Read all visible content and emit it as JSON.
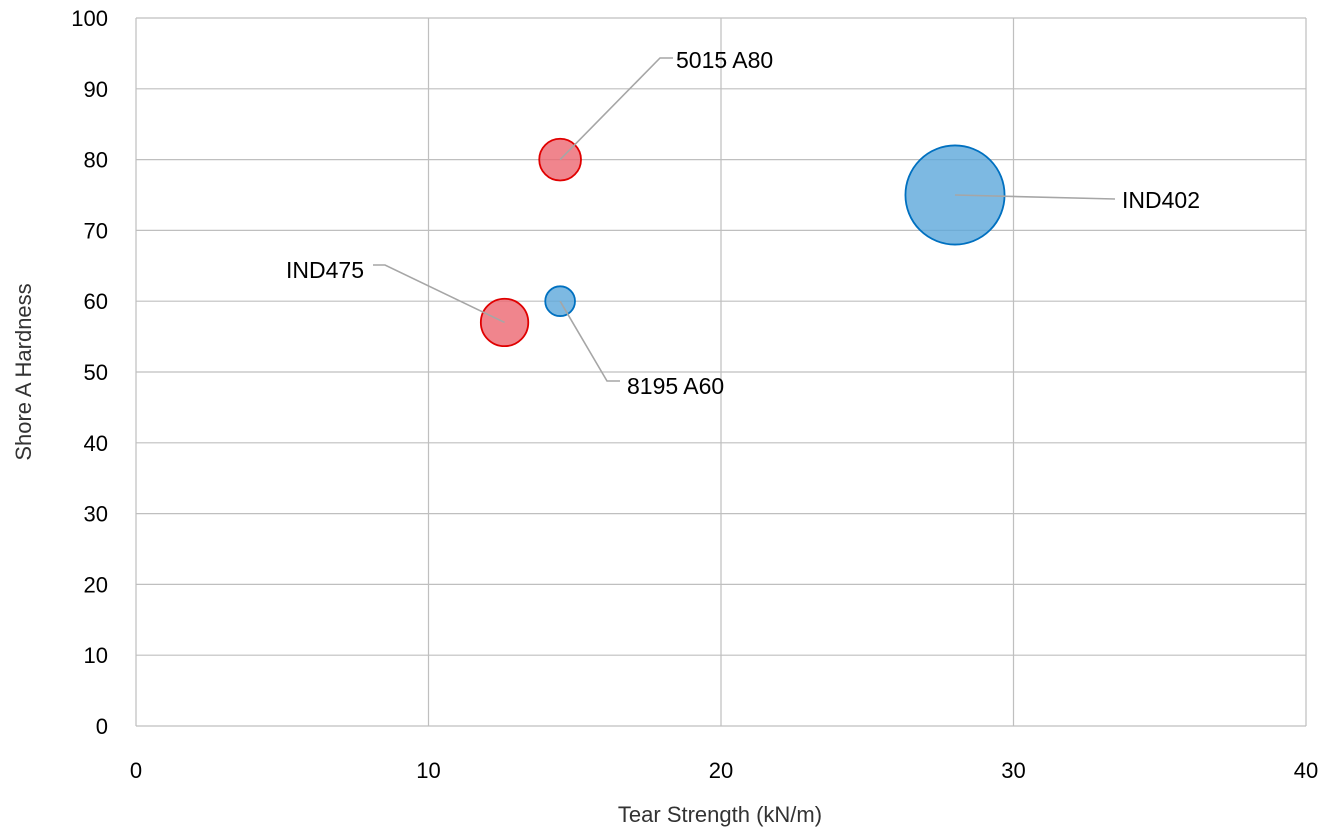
{
  "chart_data": {
    "type": "bubble",
    "title": "",
    "xlabel": "Tear Strength (kN/m)",
    "ylabel": "Shore A Hardness",
    "xlim": [
      0,
      40
    ],
    "ylim": [
      0,
      100
    ],
    "x_ticks": [
      0,
      10,
      20,
      30,
      40
    ],
    "y_ticks": [
      0,
      10,
      20,
      30,
      40,
      50,
      60,
      70,
      80,
      90,
      100
    ],
    "grid": true,
    "legend": "none",
    "series": [
      {
        "color_fill": "#5DA8DB",
        "color_edge": "#0070C0",
        "points": [
          {
            "label": "IND402",
            "x": 28,
            "y": 75,
            "size_units": 7.0
          },
          {
            "label": "8195 A60",
            "x": 14.5,
            "y": 60,
            "size_units": 2.1
          }
        ]
      },
      {
        "color_fill": "#EC6670",
        "color_edge": "#E00000",
        "points": [
          {
            "label": "5015 A80",
            "x": 14.5,
            "y": 80,
            "size_units": 2.95
          },
          {
            "label": "IND475",
            "x": 12.6,
            "y": 57,
            "size_units": 3.35
          }
        ]
      }
    ],
    "colors": {
      "grid": "#BFBFBF",
      "leader": "#A6A6A6"
    }
  }
}
